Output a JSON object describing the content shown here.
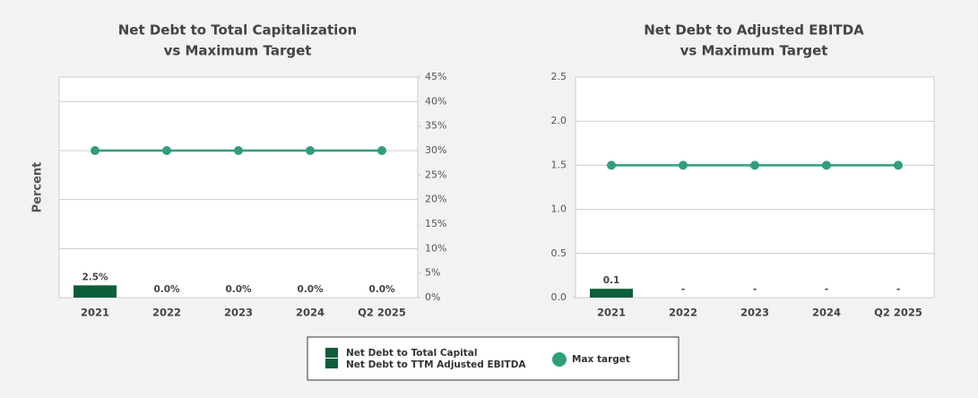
{
  "chart_data": [
    {
      "type": "bar_line",
      "title": [
        "Net Debt to Total Capitalization",
        "vs Maximum Target"
      ],
      "y_label": "Percent",
      "categories": [
        "2021",
        "2022",
        "2023",
        "2024",
        "Q2 2025"
      ],
      "ylim": [
        0,
        45
      ],
      "yticks": [
        {
          "value": 0,
          "label": "0%"
        },
        {
          "value": 5,
          "label": "5%"
        },
        {
          "value": 10,
          "label": "10%"
        },
        {
          "value": 15,
          "label": "15%"
        },
        {
          "value": 20,
          "label": "20%"
        },
        {
          "value": 25,
          "label": "25%"
        },
        {
          "value": 30,
          "label": "30%"
        },
        {
          "value": 35,
          "label": "35%"
        },
        {
          "value": 40,
          "label": "40%"
        },
        {
          "value": 45,
          "label": "45%"
        }
      ],
      "axis_side": "right",
      "series": [
        {
          "name": "Net Debt to Total Capital",
          "kind": "bar",
          "color": "#0b5e3a",
          "values": [
            2.5,
            0,
            0,
            0,
            0
          ],
          "value_labels": [
            "2.5%",
            "0.0%",
            "0.0%",
            "0.0%",
            "0.0%"
          ]
        },
        {
          "name": "Max target",
          "kind": "line",
          "color": "#2e9e7f",
          "values": [
            30,
            30,
            30,
            30,
            30
          ]
        }
      ]
    },
    {
      "type": "bar_line",
      "title": [
        "Net Debt to Adjusted EBITDA",
        "vs Maximum Target"
      ],
      "categories": [
        "2021",
        "2022",
        "2023",
        "2024",
        "Q2 2025"
      ],
      "ylim": [
        0,
        2.5
      ],
      "yticks": [
        {
          "value": 0,
          "label": "0.0"
        },
        {
          "value": 0.5,
          "label": "0.5"
        },
        {
          "value": 1,
          "label": "1.0"
        },
        {
          "value": 1.5,
          "label": "1.5"
        },
        {
          "value": 2,
          "label": "2.0"
        },
        {
          "value": 2.5,
          "label": "2.5"
        }
      ],
      "axis_side": "left",
      "series": [
        {
          "name": "Net Debt to TTM Adjusted EBITDA",
          "kind": "bar",
          "color": "#0b5e3a",
          "values": [
            0.1,
            null,
            null,
            null,
            null
          ],
          "value_labels": [
            "0.1",
            "-",
            "-",
            "-",
            "-"
          ]
        },
        {
          "kind": "line",
          "color": "#2e9e7f",
          "values": [
            1.5,
            1.5,
            1.5,
            1.5,
            1.5
          ]
        }
      ]
    }
  ]
}
